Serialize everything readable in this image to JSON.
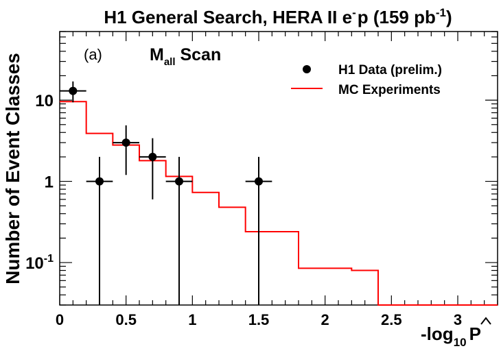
{
  "chart_data": {
    "type": "scatter",
    "title": {
      "main": "H1 General Search, HERA II e",
      "sup_minus": "-",
      "p_part": "p (159 pb",
      "sup_lumi": "-1",
      "close": ")"
    },
    "panel_label": "(a)",
    "scan_label": {
      "main": "M",
      "sub": "all",
      "suffix": " Scan"
    },
    "ylabel": "Number of Event Classes",
    "xlabel": {
      "prefix": "-log",
      "sub": "10",
      "symbol": "P"
    },
    "xlim": [
      0,
      3.3
    ],
    "ylim": [
      0.03,
      70
    ],
    "y_scale": "log",
    "x_ticks": [
      {
        "v": 0,
        "label": "0"
      },
      {
        "v": 0.5,
        "label": "0.5"
      },
      {
        "v": 1,
        "label": "1"
      },
      {
        "v": 1.5,
        "label": "1.5"
      },
      {
        "v": 2,
        "label": "2"
      },
      {
        "v": 2.5,
        "label": "2.5"
      },
      {
        "v": 3,
        "label": "3"
      }
    ],
    "y_ticks": [
      {
        "v": 0.1,
        "base": "10",
        "exp": "-1"
      },
      {
        "v": 1,
        "base": "1",
        "exp": ""
      },
      {
        "v": 10,
        "base": "10",
        "exp": ""
      }
    ],
    "legend": {
      "position": "top-right",
      "entries": [
        {
          "label": "H1 Data (prelim.)",
          "kind": "marker"
        },
        {
          "label": "MC Experiments",
          "kind": "line"
        }
      ]
    },
    "series": [
      {
        "name": "H1 Data (prelim.)",
        "kind": "points",
        "color": "#000000",
        "points": [
          {
            "x": 0.1,
            "y": 13,
            "xerr": 0.1,
            "ylo": 9.4,
            "yhi": 17
          },
          {
            "x": 0.3,
            "y": 1,
            "xerr": 0.1,
            "ylo": 0.03,
            "yhi": 2
          },
          {
            "x": 0.5,
            "y": 3,
            "xerr": 0.1,
            "ylo": 1.2,
            "yhi": 4.9
          },
          {
            "x": 0.7,
            "y": 2,
            "xerr": 0.1,
            "ylo": 0.6,
            "yhi": 3.4
          },
          {
            "x": 0.9,
            "y": 1,
            "xerr": 0.1,
            "ylo": 0.03,
            "yhi": 2
          },
          {
            "x": 1.5,
            "y": 1,
            "xerr": 0.1,
            "ylo": 0.03,
            "yhi": 2
          }
        ]
      },
      {
        "name": "MC Experiments",
        "kind": "step",
        "color": "#ff0000",
        "bin_edges": [
          0,
          0.2,
          0.4,
          0.6,
          0.8,
          1.0,
          1.2,
          1.4,
          1.6,
          1.8,
          2.0,
          2.2,
          2.4,
          3.3
        ],
        "values": [
          9.6,
          3.9,
          2.8,
          1.8,
          1.15,
          0.73,
          0.48,
          0.24,
          0.24,
          0.085,
          0.085,
          0.08,
          0.02
        ]
      }
    ]
  }
}
